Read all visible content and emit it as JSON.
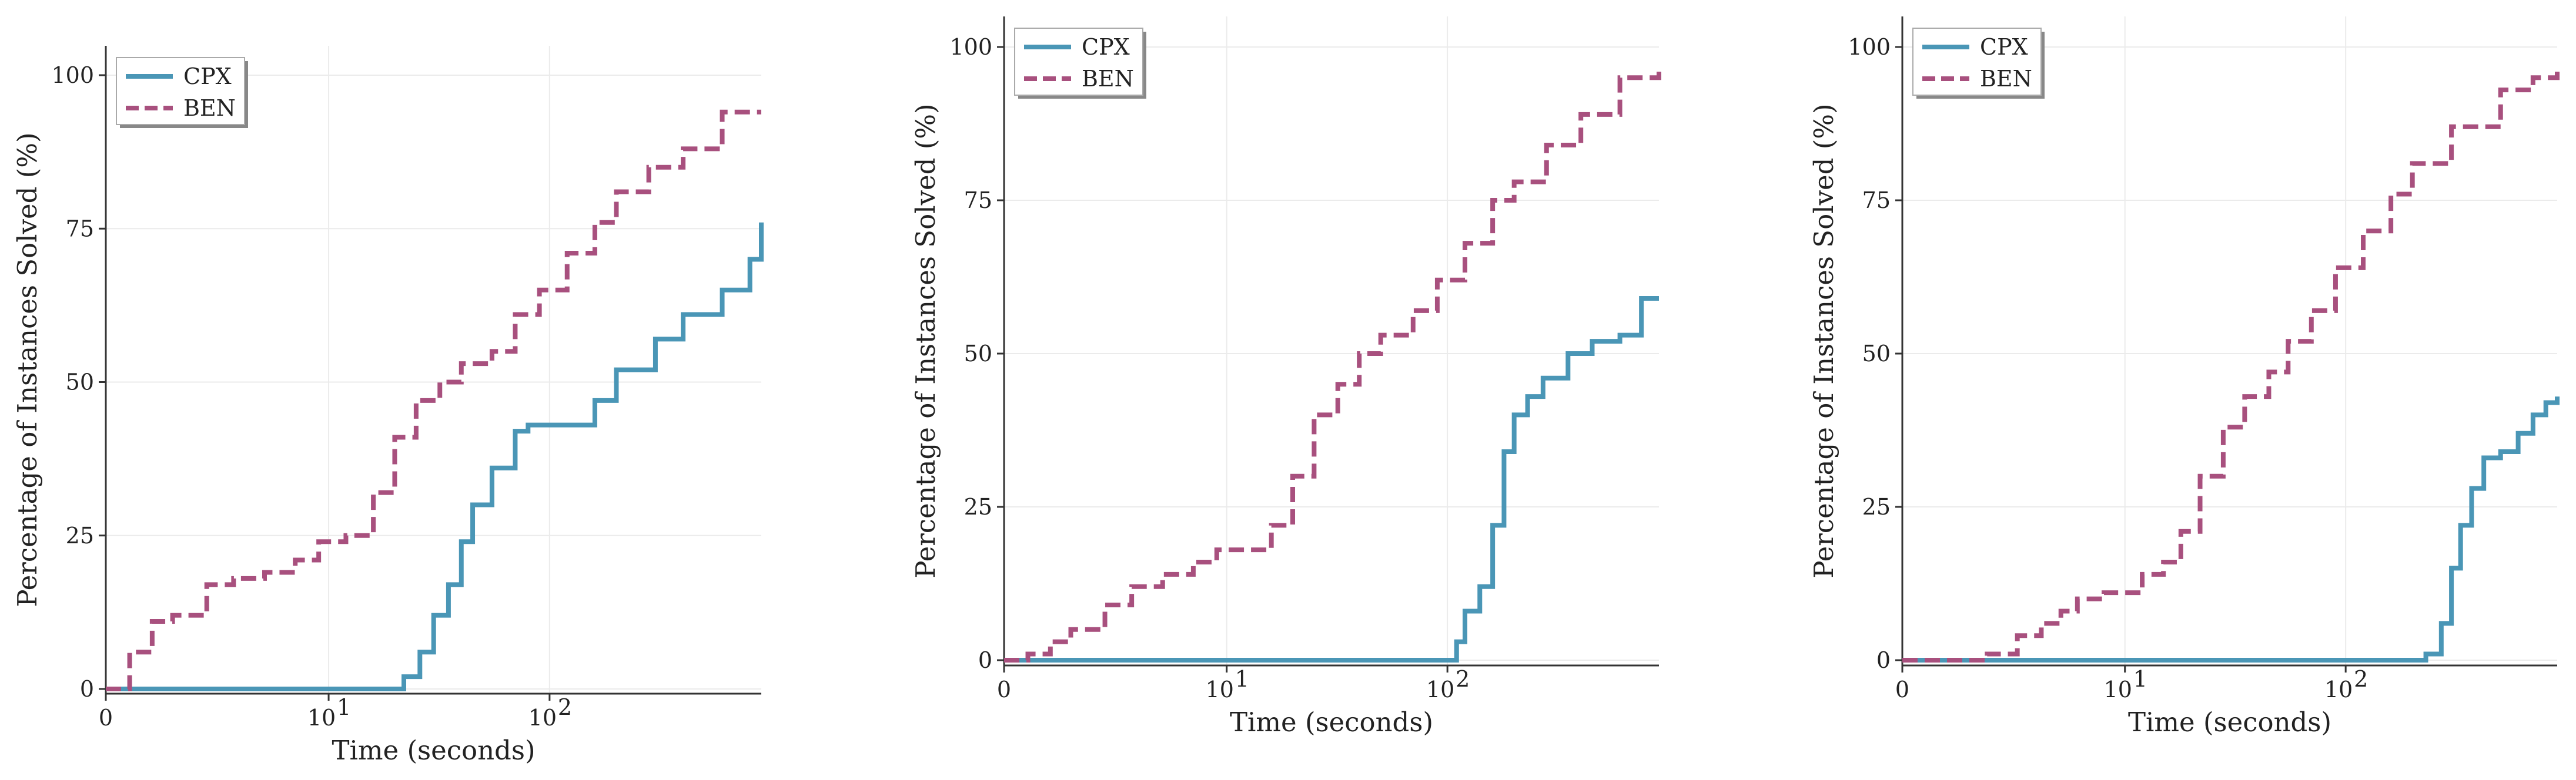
{
  "colors": {
    "cpx": "#4a96b6",
    "ben": "#a8507e",
    "grid": "#ebebeb",
    "axis": "#333333",
    "legend_shadow": "#888888"
  },
  "chart_data": [
    {
      "type": "line",
      "xlabel": "Time (seconds)",
      "ylabel": "Percentage of Instances Solved (%)",
      "x_scale": "symlog",
      "xlim": [
        0,
        900
      ],
      "ylim": [
        -1,
        105
      ],
      "x_ticks": [
        {
          "value": 0,
          "label": "0"
        },
        {
          "value": 10,
          "label": "10",
          "exp": "1"
        },
        {
          "value": 100,
          "label": "10",
          "exp": "2"
        }
      ],
      "y_ticks": [
        {
          "value": 0,
          "label": "0"
        },
        {
          "value": 25,
          "label": "25"
        },
        {
          "value": 50,
          "label": "50"
        },
        {
          "value": 75,
          "label": "75"
        },
        {
          "value": 100,
          "label": "100"
        }
      ],
      "grid": true,
      "legend": "top-left",
      "series": [
        {
          "name": "CPX",
          "style": "solid",
          "x": [
            0,
            18,
            22,
            26,
            30,
            35,
            40,
            45,
            55,
            70,
            80,
            120,
            160,
            200,
            300,
            400,
            600,
            800,
            900
          ],
          "y": [
            0,
            0,
            2,
            6,
            12,
            17,
            24,
            30,
            36,
            42,
            43,
            43,
            47,
            52,
            57,
            61,
            65,
            70,
            76
          ]
        },
        {
          "name": "BEN",
          "style": "dashed",
          "x": [
            0,
            0.5,
            1,
            1.5,
            2.5,
            3.5,
            5,
            7,
            9,
            12,
            16,
            20,
            25,
            32,
            40,
            55,
            70,
            90,
            120,
            160,
            200,
            280,
            400,
            600,
            900
          ],
          "y": [
            0,
            6,
            11,
            12,
            17,
            18,
            19,
            21,
            24,
            25,
            32,
            41,
            47,
            50,
            53,
            55,
            61,
            65,
            71,
            76,
            81,
            85,
            88,
            94,
            94
          ]
        }
      ]
    },
    {
      "type": "line",
      "xlabel": "Time (seconds)",
      "ylabel": "Percentage of Instances Solved (%)",
      "x_scale": "symlog",
      "xlim": [
        0,
        900
      ],
      "ylim": [
        -1,
        105
      ],
      "x_ticks": [
        {
          "value": 0,
          "label": "0"
        },
        {
          "value": 10,
          "label": "10",
          "exp": "1"
        },
        {
          "value": 100,
          "label": "10",
          "exp": "2"
        }
      ],
      "y_ticks": [
        {
          "value": 0,
          "label": "0"
        },
        {
          "value": 25,
          "label": "25"
        },
        {
          "value": 50,
          "label": "50"
        },
        {
          "value": 75,
          "label": "75"
        },
        {
          "value": 100,
          "label": "100"
        }
      ],
      "grid": true,
      "legend": "top-left",
      "series": [
        {
          "name": "CPX",
          "style": "solid",
          "x": [
            0,
            100,
            110,
            120,
            140,
            160,
            180,
            200,
            230,
            270,
            350,
            450,
            600,
            750,
            900
          ],
          "y": [
            0,
            0,
            3,
            8,
            12,
            22,
            34,
            40,
            43,
            46,
            50,
            52,
            53,
            59,
            59
          ]
        },
        {
          "name": "BEN",
          "style": "dashed",
          "x": [
            0,
            0.5,
            1,
            1.5,
            2.5,
            3.5,
            5,
            7,
            9,
            12,
            16,
            20,
            25,
            32,
            40,
            50,
            70,
            90,
            120,
            160,
            200,
            280,
            400,
            600,
            900
          ],
          "y": [
            0,
            1,
            3,
            5,
            9,
            12,
            14,
            16,
            18,
            18,
            22,
            30,
            40,
            45,
            50,
            53,
            57,
            62,
            68,
            75,
            78,
            84,
            89,
            95,
            97
          ]
        }
      ]
    },
    {
      "type": "line",
      "xlabel": "Time (seconds)",
      "ylabel": "Percentage of Instances Solved (%)",
      "x_scale": "symlog",
      "xlim": [
        0,
        900
      ],
      "ylim": [
        -1,
        105
      ],
      "x_ticks": [
        {
          "value": 0,
          "label": "0"
        },
        {
          "value": 10,
          "label": "10",
          "exp": "1"
        },
        {
          "value": 100,
          "label": "10",
          "exp": "2"
        }
      ],
      "y_ticks": [
        {
          "value": 0,
          "label": "0"
        },
        {
          "value": 25,
          "label": "25"
        },
        {
          "value": 50,
          "label": "50"
        },
        {
          "value": 75,
          "label": "75"
        },
        {
          "value": 100,
          "label": "100"
        }
      ],
      "grid": true,
      "legend": "top-left",
      "series": [
        {
          "name": "CPX",
          "style": "solid",
          "x": [
            0,
            180,
            230,
            270,
            300,
            330,
            370,
            420,
            500,
            600,
            700,
            800,
            900
          ],
          "y": [
            0,
            0,
            1,
            6,
            15,
            22,
            28,
            33,
            34,
            37,
            40,
            42,
            43
          ]
        },
        {
          "name": "BEN",
          "style": "dashed",
          "x": [
            0,
            1.5,
            2,
            3,
            4,
            5,
            6,
            8,
            10,
            12,
            15,
            18,
            22,
            28,
            35,
            45,
            55,
            70,
            90,
            120,
            160,
            200,
            300,
            500,
            700,
            900
          ],
          "y": [
            0,
            0,
            1,
            4,
            6,
            8,
            10,
            11,
            11,
            14,
            16,
            21,
            30,
            38,
            43,
            47,
            52,
            57,
            64,
            70,
            76,
            81,
            87,
            93,
            95,
            97
          ]
        }
      ]
    }
  ]
}
